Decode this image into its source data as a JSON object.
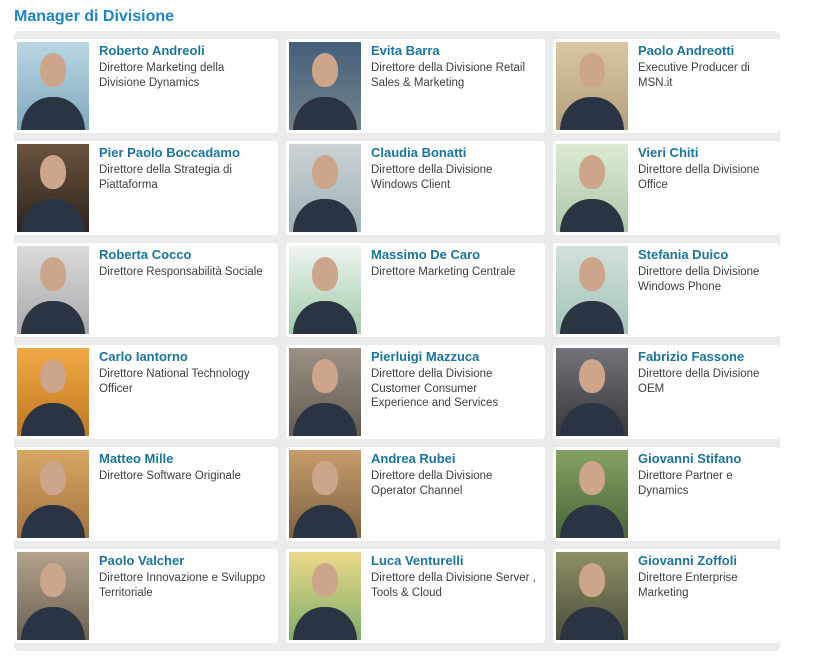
{
  "page": {
    "title": "Manager di Divisione"
  },
  "colors": {
    "header_blue": "#1c86c8",
    "name_link_blue": "#1a759f",
    "role_text": "#3f3f3f",
    "gutter_gray": "#ebebeb",
    "card_white": "#ffffff",
    "silhouette_skin": "#cda58a",
    "silhouette_suit": "#2a3442"
  },
  "people": [
    {
      "name": "Roberto Andreoli",
      "title": "Direttore Marketing della Divisione Dynamics",
      "photo": {
        "bg1": "#b9d7e3",
        "bg2": "#7fa9bd"
      }
    },
    {
      "name": "Evita Barra",
      "title": "Direttore della Divisione Retail Sales & Marketing",
      "photo": {
        "bg1": "#45607b",
        "bg2": "#74828c"
      }
    },
    {
      "name": "Paolo Andreotti",
      "title": "Executive Producer di MSN.it",
      "photo": {
        "bg1": "#d9c8a2",
        "bg2": "#b3a07e"
      }
    },
    {
      "name": "Pier Paolo Boccadamo",
      "title": "Direttore della Strategia di Piattaforma",
      "photo": {
        "bg1": "#6b5440",
        "bg2": "#2c241d"
      }
    },
    {
      "name": "Claudia Bonatti",
      "title": "Direttore della Divisione Windows Client",
      "photo": {
        "bg1": "#ccd3d6",
        "bg2": "#9fb0b6"
      }
    },
    {
      "name": "Vieri Chiti",
      "title": "Direttore della Divisione Office",
      "photo": {
        "bg1": "#dcead4",
        "bg2": "#aec7ab"
      }
    },
    {
      "name": "Roberta Cocco",
      "title": "Direttore Responsabilità Sociale",
      "photo": {
        "bg1": "#dcdcdc",
        "bg2": "#a8a8ac"
      }
    },
    {
      "name": "Massimo De Caro",
      "title": "Direttore Marketing Centrale",
      "photo": {
        "bg1": "#eef5ef",
        "bg2": "#9fcaa9"
      }
    },
    {
      "name": "Stefania Duico",
      "title": "Direttore della Divisione Windows Phone",
      "photo": {
        "bg1": "#d3e2da",
        "bg2": "#a3c2b8"
      }
    },
    {
      "name": "Carlo Iantorno",
      "title": "Direttore National Technology Officer",
      "photo": {
        "bg1": "#f2a943",
        "bg2": "#bf7722"
      }
    },
    {
      "name": "Pierluigi Mazzuca",
      "title": "Direttore della Divisione Customer Consumer Experience and Services",
      "photo": {
        "bg1": "#9b9184",
        "bg2": "#635b52"
      }
    },
    {
      "name": "Fabrizio Fassone",
      "title": "Direttore della Divisione OEM",
      "photo": {
        "bg1": "#73737a",
        "bg2": "#37373e"
      }
    },
    {
      "name": "Matteo Mille",
      "title": "Direttore Software Originale",
      "photo": {
        "bg1": "#d6a763",
        "bg2": "#a3733f"
      }
    },
    {
      "name": "Andrea Rubei",
      "title": "Direttore della Divisione Operator Channel",
      "photo": {
        "bg1": "#c79e6b",
        "bg2": "#7d6142"
      }
    },
    {
      "name": "Giovanni Stifano",
      "title": "Direttore Partner e Dynamics",
      "photo": {
        "bg1": "#85a263",
        "bg2": "#49663a"
      }
    },
    {
      "name": "Paolo Valcher",
      "title": "Direttore Innovazione e Sviluppo Territoriale",
      "photo": {
        "bg1": "#b2a28c",
        "bg2": "#6b6054"
      }
    },
    {
      "name": "Luca Venturelli",
      "title": "Direttore della Divisione Server , Tools & Cloud",
      "photo": {
        "bg1": "#ecd98a",
        "bg2": "#7fae6a"
      }
    },
    {
      "name": "Giovanni Zoffoli",
      "title": "Direttore Enterprise Marketing",
      "photo": {
        "bg1": "#8f8f66",
        "bg2": "#4c4c3a"
      }
    }
  ]
}
